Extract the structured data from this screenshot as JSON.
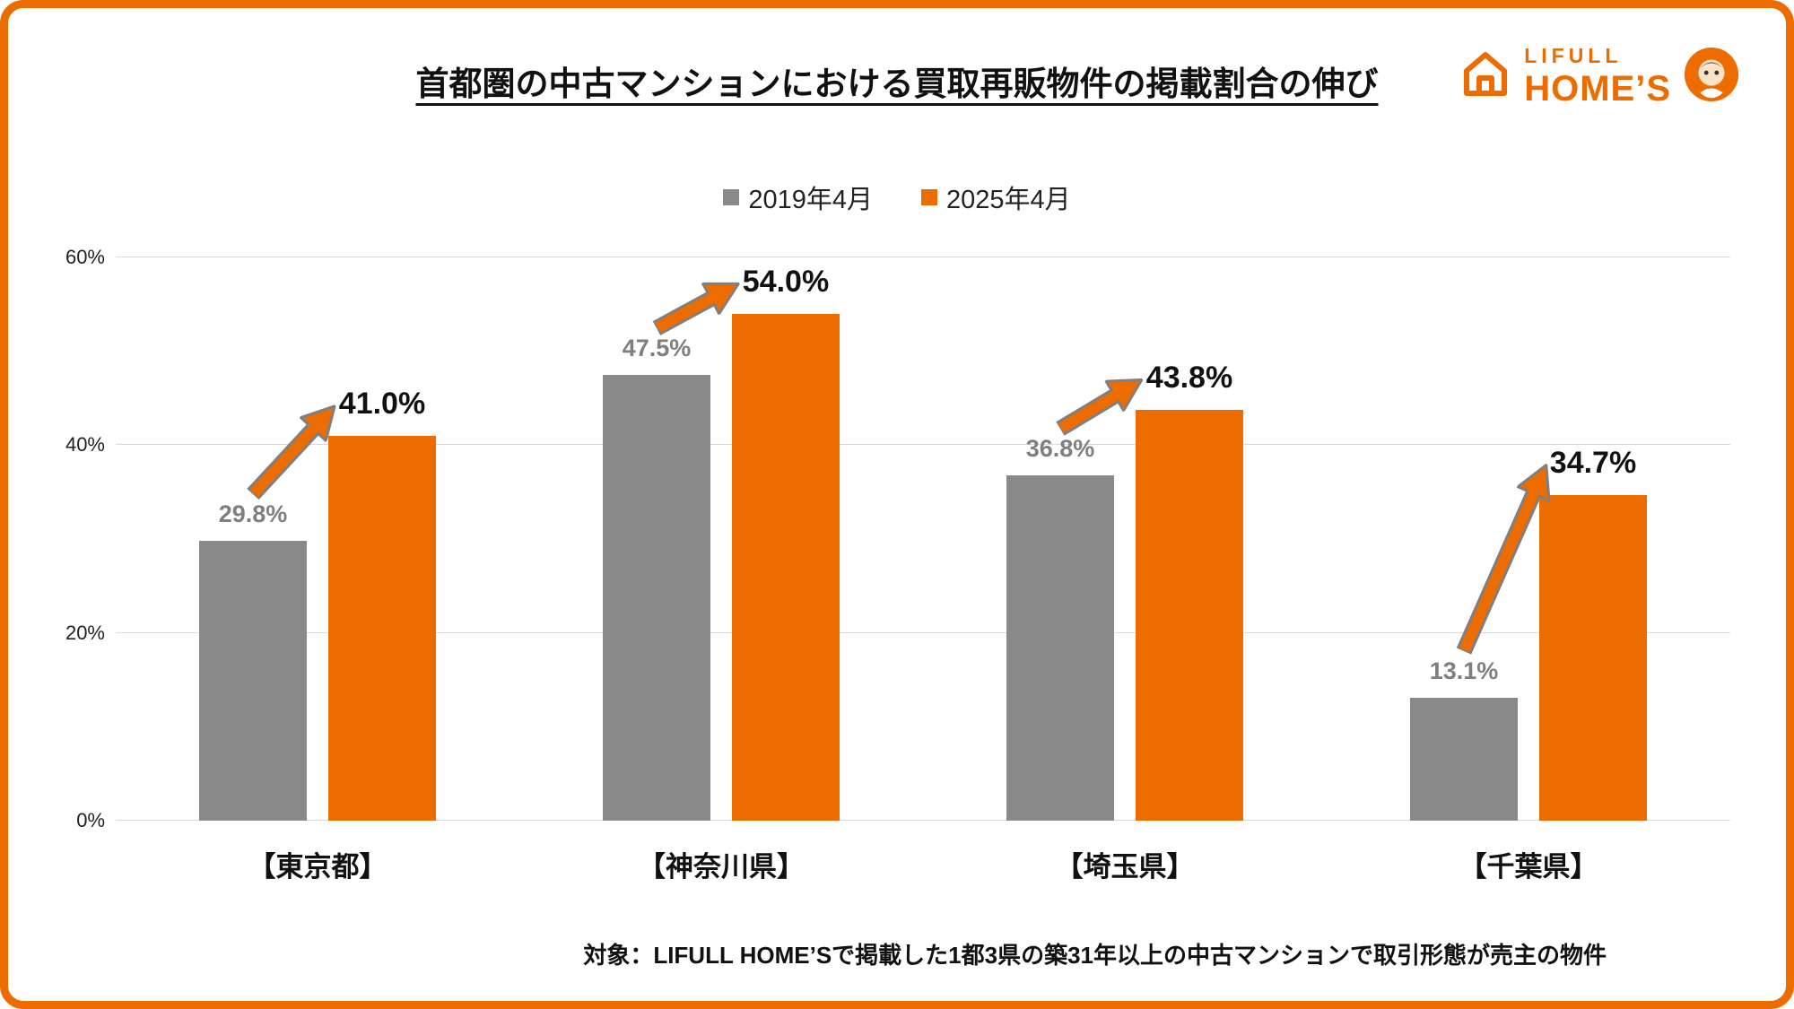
{
  "title": "首都圏の中古マンションにおける買取再販物件の掲載割合の伸び",
  "logo": {
    "brand_top": "LIFULL",
    "brand_bottom": "HOME’S"
  },
  "footnote": "対象：LIFULL HOME’Sで掲載した1都3県の築31年以上の中古マンションで取引形態が売主の物件",
  "colors": {
    "orange": "#ED6C00",
    "gray": "#898989",
    "grid": "#D9D9D9",
    "gray_label": "#7F7F7F",
    "arrow_stroke": "#7F7F7F"
  },
  "icons": [
    "house-icon",
    "mascot-icon",
    "growth-arrow-icon"
  ],
  "chart_data": {
    "type": "bar",
    "title": "首都圏の中古マンションにおける買取再販物件の掲載割合の伸び",
    "categories": [
      "【東京都】",
      "【神奈川県】",
      "【埼玉県】",
      "【千葉県】"
    ],
    "series": [
      {
        "name": "2019年4月",
        "color": "#898989",
        "values": [
          29.8,
          47.5,
          36.8,
          13.1
        ],
        "labels": [
          "29.8%",
          "47.5%",
          "36.8%",
          "13.1%"
        ]
      },
      {
        "name": "2025年4月",
        "color": "#ED6C00",
        "values": [
          41.0,
          54.0,
          43.8,
          34.7
        ],
        "labels": [
          "41.0%",
          "54.0%",
          "43.8%",
          "34.7%"
        ]
      }
    ],
    "xlabel": "",
    "ylabel": "",
    "ylim": [
      0,
      60
    ],
    "yticks": [
      0,
      20,
      40,
      60
    ],
    "ytick_labels": [
      "0%",
      "20%",
      "40%",
      "60%"
    ],
    "grid": true,
    "legend_position": "top-center",
    "annotations": "orange up-right arrow from 2019 bar to 2025 value in each category"
  }
}
